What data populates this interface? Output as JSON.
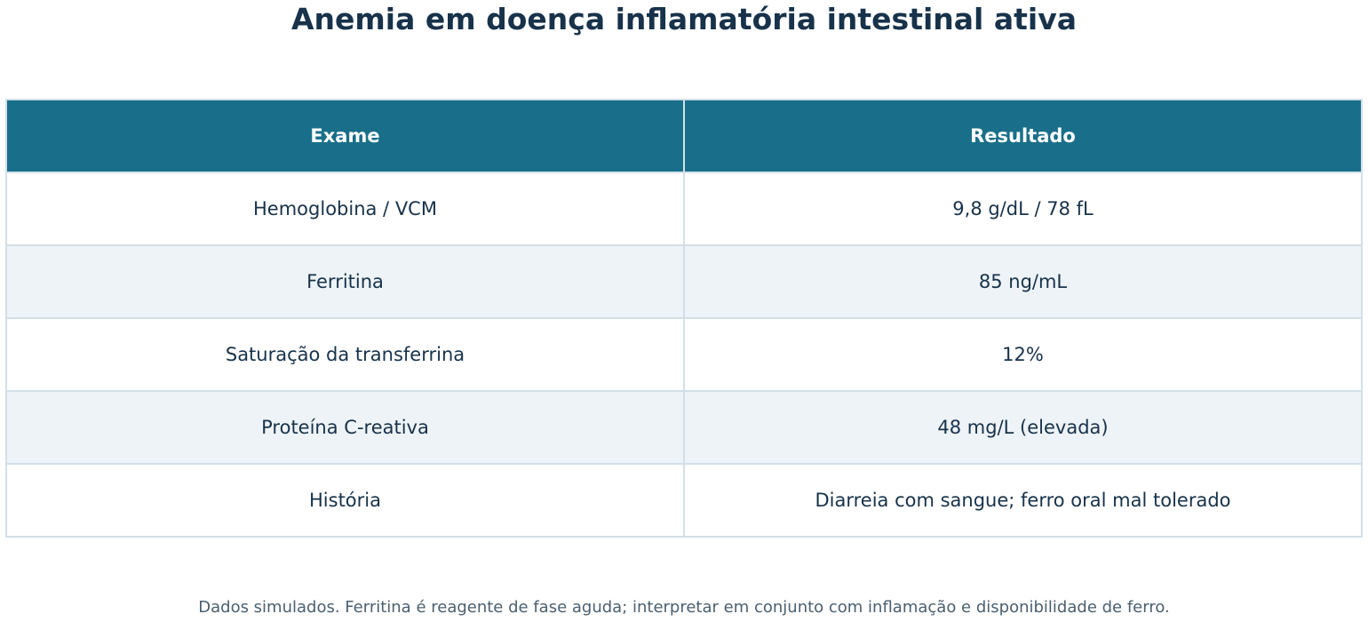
{
  "title": "Anemia em doença inflamatória intestinal ativa",
  "table": {
    "header": [
      "Exame",
      "Resultado"
    ],
    "rows": [
      [
        "Hemoglobina / VCM",
        "9,8 g/dL / 78 fL"
      ],
      [
        "Ferritina",
        "85 ng/mL"
      ],
      [
        "Saturação da transferrina",
        "12%"
      ],
      [
        "Proteína C-reativa",
        "48 mg/L (elevada)"
      ],
      [
        "História",
        "Diarreia com sangue; ferro oral mal tolerado"
      ]
    ]
  },
  "footnote": "Dados simulados. Ferritina é reagente de fase aguda; interpretar em conjunto com inflamação e disponibilidade de ferro."
}
